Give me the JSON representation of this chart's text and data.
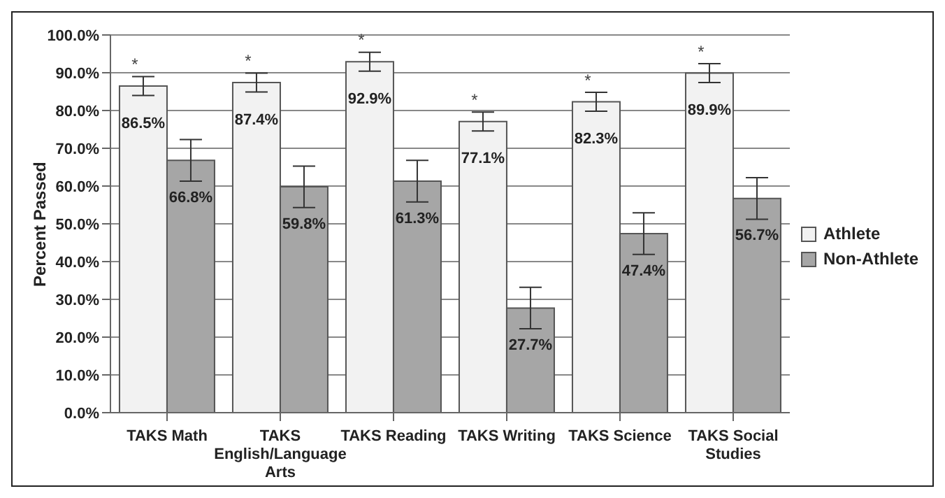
{
  "chart_data": {
    "type": "bar",
    "ylabel": "Percent Passed",
    "categories": [
      "TAKS Math",
      "TAKS English/Language Arts",
      "TAKS Reading",
      "TAKS Writing",
      "TAKS Science",
      "TAKS Social Studies"
    ],
    "series": [
      {
        "name": "Athlete",
        "color": "#f2f2f2",
        "values": [
          86.5,
          87.4,
          92.9,
          77.1,
          82.3,
          89.9
        ],
        "errors": [
          2.5,
          2.5,
          2.5,
          2.5,
          2.5,
          2.5
        ],
        "value_labels": [
          "86.5%",
          "87.4%",
          "92.9%",
          "77.1%",
          "82.3%",
          "89.9%"
        ]
      },
      {
        "name": "Non-Athlete",
        "color": "#a6a6a6",
        "values": [
          66.8,
          59.8,
          61.3,
          27.7,
          47.4,
          56.7
        ],
        "errors": [
          5.5,
          5.5,
          5.5,
          5.5,
          5.5,
          5.5
        ],
        "value_labels": [
          "66.8%",
          "59.8%",
          "61.3%",
          "27.7%",
          "47.4%",
          "56.7%"
        ]
      }
    ],
    "ylim": [
      0,
      100
    ],
    "yticks": [
      {
        "value": 0,
        "label": "0.0%"
      },
      {
        "value": 10,
        "label": "10.0%"
      },
      {
        "value": 20,
        "label": "20.0%"
      },
      {
        "value": 30,
        "label": "30.0%"
      },
      {
        "value": 40,
        "label": "40.0%"
      },
      {
        "value": 50,
        "label": "50.0%"
      },
      {
        "value": 60,
        "label": "60.0%"
      },
      {
        "value": 70,
        "label": "70.0%"
      },
      {
        "value": 80,
        "label": "80.0%"
      },
      {
        "value": 90,
        "label": "90.0%"
      },
      {
        "value": 100,
        "label": "100.0%"
      }
    ],
    "grid": "y",
    "legend": "right",
    "annotations": [
      {
        "text": "*",
        "x": "TAKS Math",
        "y": 86.5
      },
      {
        "text": "*",
        "x": "TAKS English/Language Arts",
        "y": 87.4
      },
      {
        "text": "*",
        "x": "TAKS Reading",
        "y": 92.9
      },
      {
        "text": "*",
        "x": "TAKS Writing",
        "y": 77.1
      },
      {
        "text": "*",
        "x": "TAKS Science",
        "y": 82.3
      },
      {
        "text": "*",
        "x": "TAKS Social Studies",
        "y": 89.9
      }
    ]
  }
}
